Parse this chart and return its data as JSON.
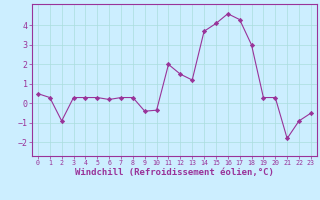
{
  "x": [
    0,
    1,
    2,
    3,
    4,
    5,
    6,
    7,
    8,
    9,
    10,
    11,
    12,
    13,
    14,
    15,
    16,
    17,
    18,
    19,
    20,
    21,
    22,
    23
  ],
  "y": [
    0.5,
    0.3,
    -0.9,
    0.3,
    0.3,
    0.3,
    0.2,
    0.3,
    0.3,
    -0.4,
    -0.35,
    2.0,
    1.5,
    1.2,
    3.7,
    4.1,
    4.6,
    4.3,
    3.0,
    0.3,
    0.3,
    -1.8,
    -0.9,
    -0.5
  ],
  "line_color": "#993399",
  "marker": "D",
  "marker_size": 2.2,
  "bg_color": "#cceeff",
  "grid_color": "#aadddd",
  "xlabel": "Windchill (Refroidissement éolien,°C)",
  "xlabel_fontsize": 6.5,
  "ylabel_ticks": [
    -2,
    -1,
    0,
    1,
    2,
    3,
    4
  ],
  "xtick_labels": [
    "0",
    "1",
    "2",
    "3",
    "4",
    "5",
    "6",
    "7",
    "8",
    "9",
    "10",
    "11",
    "12",
    "13",
    "14",
    "15",
    "16",
    "17",
    "18",
    "19",
    "20",
    "21",
    "22",
    "23"
  ],
  "ylim": [
    -2.7,
    5.1
  ],
  "xlim": [
    -0.5,
    23.5
  ]
}
